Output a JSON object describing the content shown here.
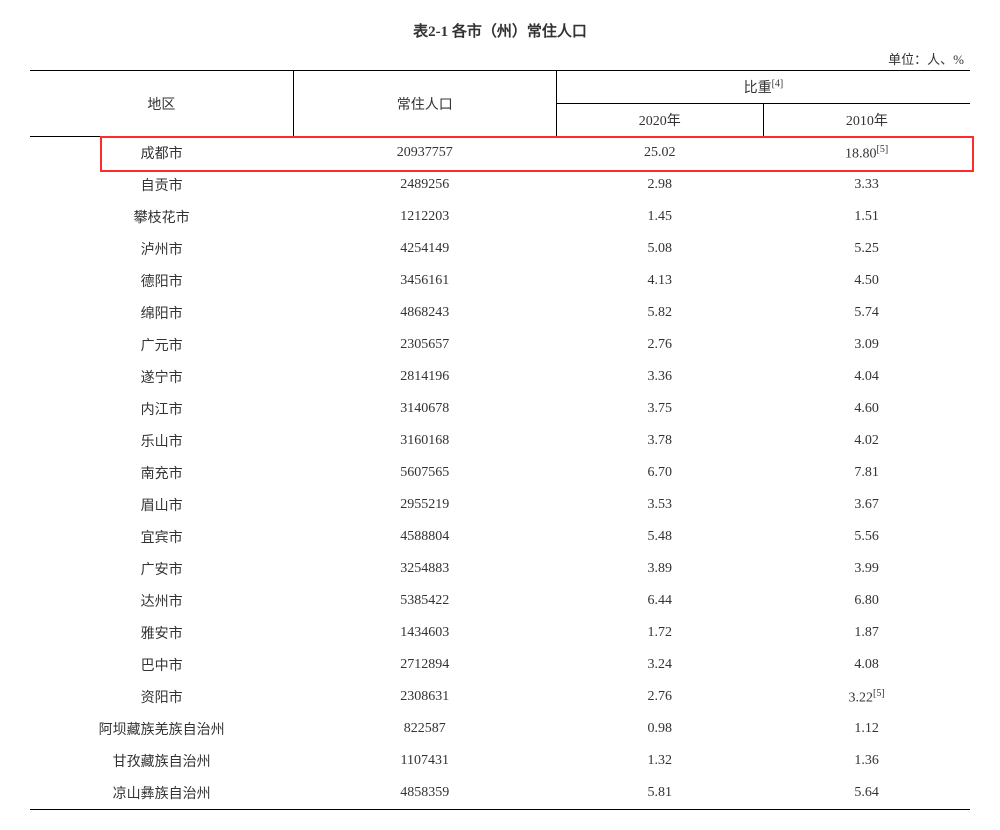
{
  "title": "表2-1 各市（州）常住人口",
  "unit_label": "单位：人、%",
  "columns": {
    "region": "地区",
    "population": "常住人口",
    "ratio_group": "比重",
    "ratio_footnote": "[4]",
    "year_2020": "2020年",
    "year_2010": "2010年"
  },
  "highlight_row_index": 0,
  "highlight_color": "#ff2a2a",
  "rows": [
    {
      "region": "成都市",
      "pop": "20937757",
      "r2020": "25.02",
      "r2010": "18.80",
      "r2010_note": "[5]"
    },
    {
      "region": "自贡市",
      "pop": "2489256",
      "r2020": "2.98",
      "r2010": "3.33"
    },
    {
      "region": "攀枝花市",
      "pop": "1212203",
      "r2020": "1.45",
      "r2010": "1.51"
    },
    {
      "region": "泸州市",
      "pop": "4254149",
      "r2020": "5.08",
      "r2010": "5.25"
    },
    {
      "region": "德阳市",
      "pop": "3456161",
      "r2020": "4.13",
      "r2010": "4.50"
    },
    {
      "region": "绵阳市",
      "pop": "4868243",
      "r2020": "5.82",
      "r2010": "5.74"
    },
    {
      "region": "广元市",
      "pop": "2305657",
      "r2020": "2.76",
      "r2010": "3.09"
    },
    {
      "region": "遂宁市",
      "pop": "2814196",
      "r2020": "3.36",
      "r2010": "4.04"
    },
    {
      "region": "内江市",
      "pop": "3140678",
      "r2020": "3.75",
      "r2010": "4.60"
    },
    {
      "region": "乐山市",
      "pop": "3160168",
      "r2020": "3.78",
      "r2010": "4.02"
    },
    {
      "region": "南充市",
      "pop": "5607565",
      "r2020": "6.70",
      "r2010": "7.81"
    },
    {
      "region": "眉山市",
      "pop": "2955219",
      "r2020": "3.53",
      "r2010": "3.67"
    },
    {
      "region": "宜宾市",
      "pop": "4588804",
      "r2020": "5.48",
      "r2010": "5.56"
    },
    {
      "region": "广安市",
      "pop": "3254883",
      "r2020": "3.89",
      "r2010": "3.99"
    },
    {
      "region": "达州市",
      "pop": "5385422",
      "r2020": "6.44",
      "r2010": "6.80"
    },
    {
      "region": "雅安市",
      "pop": "1434603",
      "r2020": "1.72",
      "r2010": "1.87"
    },
    {
      "region": "巴中市",
      "pop": "2712894",
      "r2020": "3.24",
      "r2010": "4.08"
    },
    {
      "region": "资阳市",
      "pop": "2308631",
      "r2020": "2.76",
      "r2010": "3.22",
      "r2010_note": "[5]"
    },
    {
      "region": "阿坝藏族羌族自治州",
      "pop": "822587",
      "r2020": "0.98",
      "r2010": "1.12"
    },
    {
      "region": "甘孜藏族自治州",
      "pop": "1107431",
      "r2020": "1.32",
      "r2010": "1.36"
    },
    {
      "region": "凉山彝族自治州",
      "pop": "4858359",
      "r2020": "5.81",
      "r2010": "5.64"
    }
  ],
  "col_widths_pct": [
    28,
    28,
    22,
    22
  ]
}
